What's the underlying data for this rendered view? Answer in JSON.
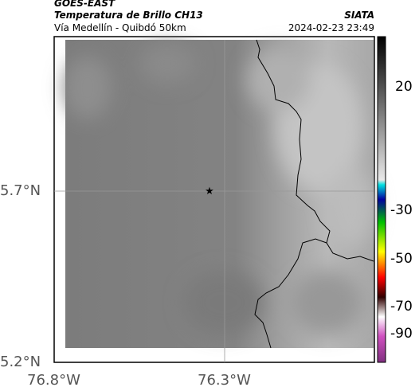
{
  "header": {
    "source": "GOES-EAST",
    "title": "Temperatura de Brillo CH13",
    "subtitle": "Vía Medellín - Quibdó 50km",
    "agency": "SIATA",
    "timestamp": "2024-02-23 23:49"
  },
  "axes": {
    "lat_labels": [
      "5.7°N",
      "5.2°N"
    ],
    "lon_labels": [
      "76.8°W",
      "76.3°W"
    ]
  },
  "colorbar": {
    "labels": [
      "20",
      "-30",
      "-50",
      "-70",
      "-90"
    ]
  }
}
